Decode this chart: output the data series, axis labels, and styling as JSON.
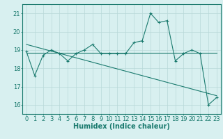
{
  "title": "",
  "xlabel": "Humidex (Indice chaleur)",
  "ylabel": "",
  "background_color": "#d8f0f0",
  "line_color": "#1a7a6e",
  "grid_color": "#b8d8d8",
  "xlim": [
    -0.5,
    23.5
  ],
  "ylim": [
    15.5,
    21.5
  ],
  "yticks": [
    16,
    17,
    18,
    19,
    20,
    21
  ],
  "xticks": [
    0,
    1,
    2,
    3,
    4,
    5,
    6,
    7,
    8,
    9,
    10,
    11,
    12,
    13,
    14,
    15,
    16,
    17,
    18,
    19,
    20,
    21,
    22,
    23
  ],
  "x_hourly": [
    0,
    1,
    2,
    3,
    4,
    5,
    6,
    7,
    8,
    9,
    10,
    11,
    12,
    13,
    14,
    15,
    16,
    17,
    18,
    19,
    20,
    21,
    22,
    23
  ],
  "y_hourly": [
    18.9,
    17.6,
    18.7,
    19.0,
    18.8,
    18.4,
    18.8,
    19.0,
    19.3,
    18.8,
    18.8,
    18.8,
    18.8,
    19.4,
    19.5,
    21.0,
    20.5,
    20.6,
    18.4,
    18.8,
    19.0,
    18.8,
    16.0,
    16.4
  ],
  "y_flat": [
    18.85,
    18.85,
    18.85,
    18.85,
    18.85,
    18.85,
    18.85,
    18.85,
    18.85,
    18.85,
    18.85,
    18.85,
    18.85,
    18.85,
    18.85,
    18.85,
    18.85,
    18.85,
    18.85,
    18.85,
    18.85,
    18.85,
    18.85,
    18.85
  ],
  "y_diag_start": 19.3,
  "y_diag_end": 16.5,
  "diag_x_start": 0,
  "diag_x_end": 23,
  "fontsize_label": 7,
  "fontsize_tick": 6
}
